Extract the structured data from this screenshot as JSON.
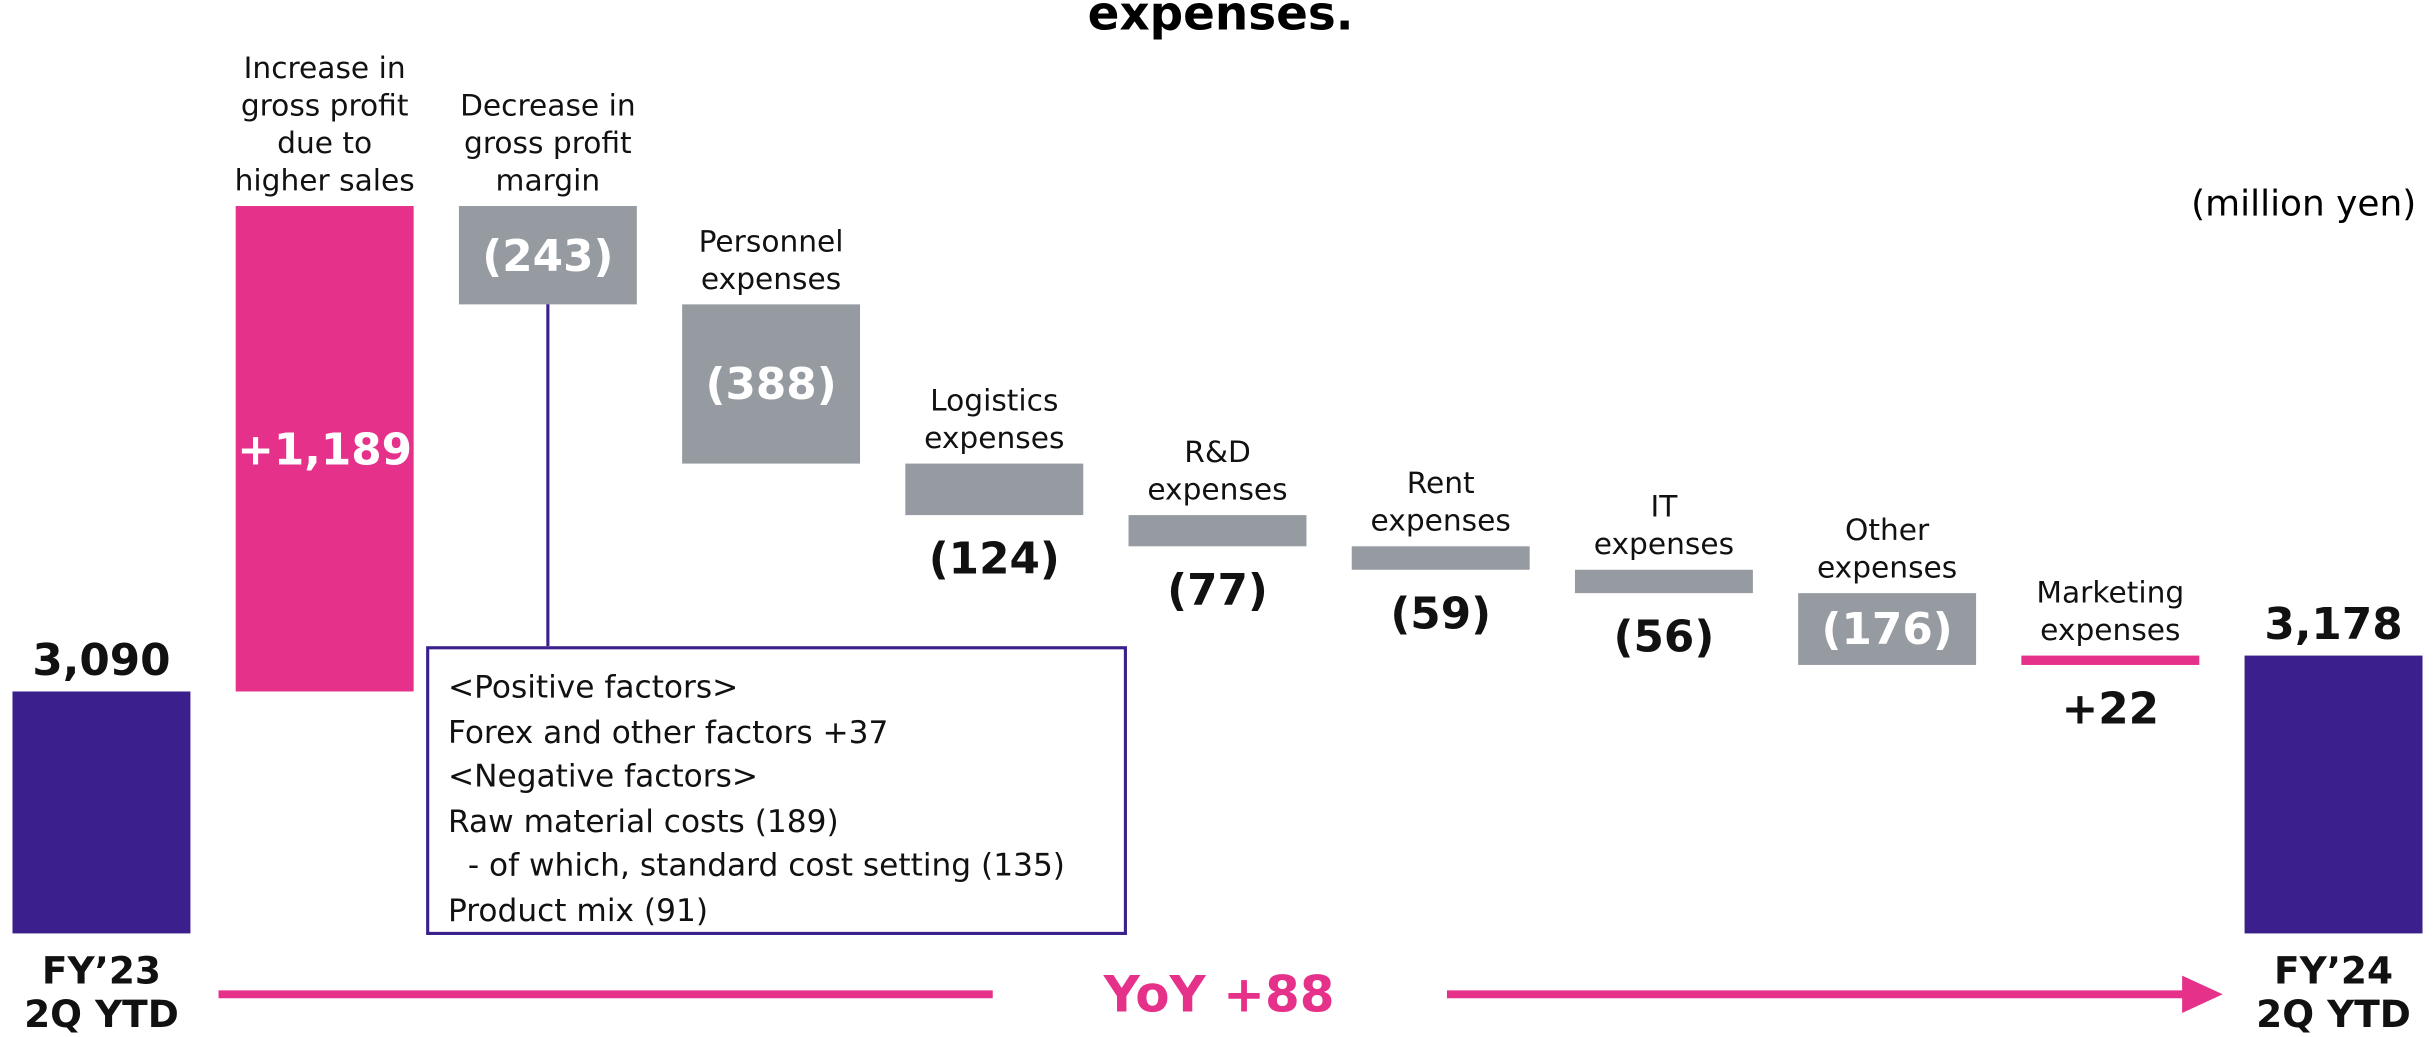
{
  "chart_data": {
    "type": "waterfall",
    "title": "expenses.",
    "unit_label": "(million yen)",
    "categories": [
      "FY’23\n2Q YTD",
      "Increase in\ngross profit\ndue to\nhigher sales",
      "Decrease in\ngross profit\nmargin",
      "Personnel\nexpenses",
      "Logistics\nexpenses",
      "R&D\nexpenses",
      "Rent\nexpenses",
      "IT\nexpenses",
      "Other\nexpenses",
      "Marketing\nexpenses",
      "FY’24\n2Q YTD"
    ],
    "values": [
      3090,
      1189,
      -243,
      -388,
      -124,
      -77,
      -59,
      -56,
      -176,
      22,
      3178
    ],
    "value_labels": [
      "3,090",
      "+1,189",
      "(243)",
      "(388)",
      "(124)",
      "(77)",
      "(59)",
      "(56)",
      "(176)",
      "+22",
      "3,178"
    ],
    "measure": [
      "total",
      "relative",
      "relative",
      "relative",
      "relative",
      "relative",
      "relative",
      "relative",
      "relative",
      "relative",
      "total"
    ],
    "colors": {
      "total": "#3b1f8c",
      "increase": "#e6318b",
      "decrease": "#959ba0"
    },
    "ylim": [
      2500,
      4400
    ],
    "annotation": [
      "<Positive factors>",
      "Forex and other factors +37",
      "<Negative factors>",
      "Raw material costs (189)",
      "  - of which, standard cost setting (135)",
      "Product mix (91)"
    ],
    "yoy_label": "YoY +88"
  }
}
